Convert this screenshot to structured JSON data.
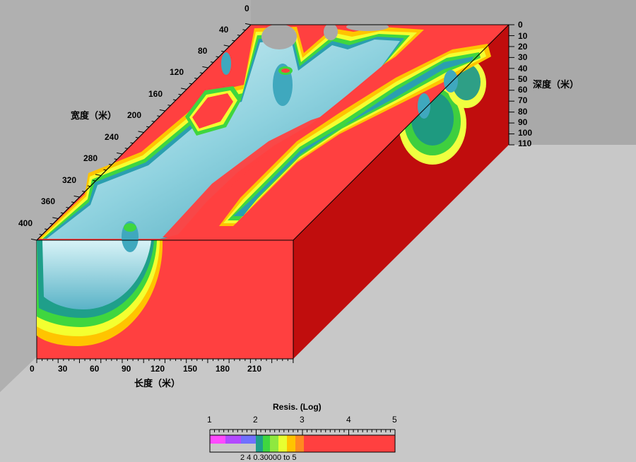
{
  "axes": {
    "width_label": "宽度（米）",
    "length_label": "长度（米）",
    "depth_label": "深度（米）",
    "width_ticks": [
      "0",
      "40",
      "80",
      "120",
      "160",
      "200",
      "240",
      "280",
      "320",
      "360",
      "400"
    ],
    "length_ticks": [
      "0",
      "30",
      "60",
      "90",
      "120",
      "150",
      "180",
      "210"
    ],
    "depth_ticks": [
      "0",
      "10",
      "20",
      "30",
      "40",
      "50",
      "60",
      "70",
      "80",
      "90",
      "100",
      "110"
    ]
  },
  "legend": {
    "title": "Resis. (Log)",
    "ticks": [
      "1",
      "2",
      "3",
      "4",
      "5"
    ],
    "footer": "2              4          0.30000  to  5"
  },
  "colors": {
    "background": "#c8c8c8",
    "wall": "#a9a9a9",
    "high_resistivity_red": "#ff4040",
    "dark_red": "#cc1111",
    "low_resistivity_cyan": "#5fb8cc",
    "light_cyan": "#cfeff5"
  }
}
